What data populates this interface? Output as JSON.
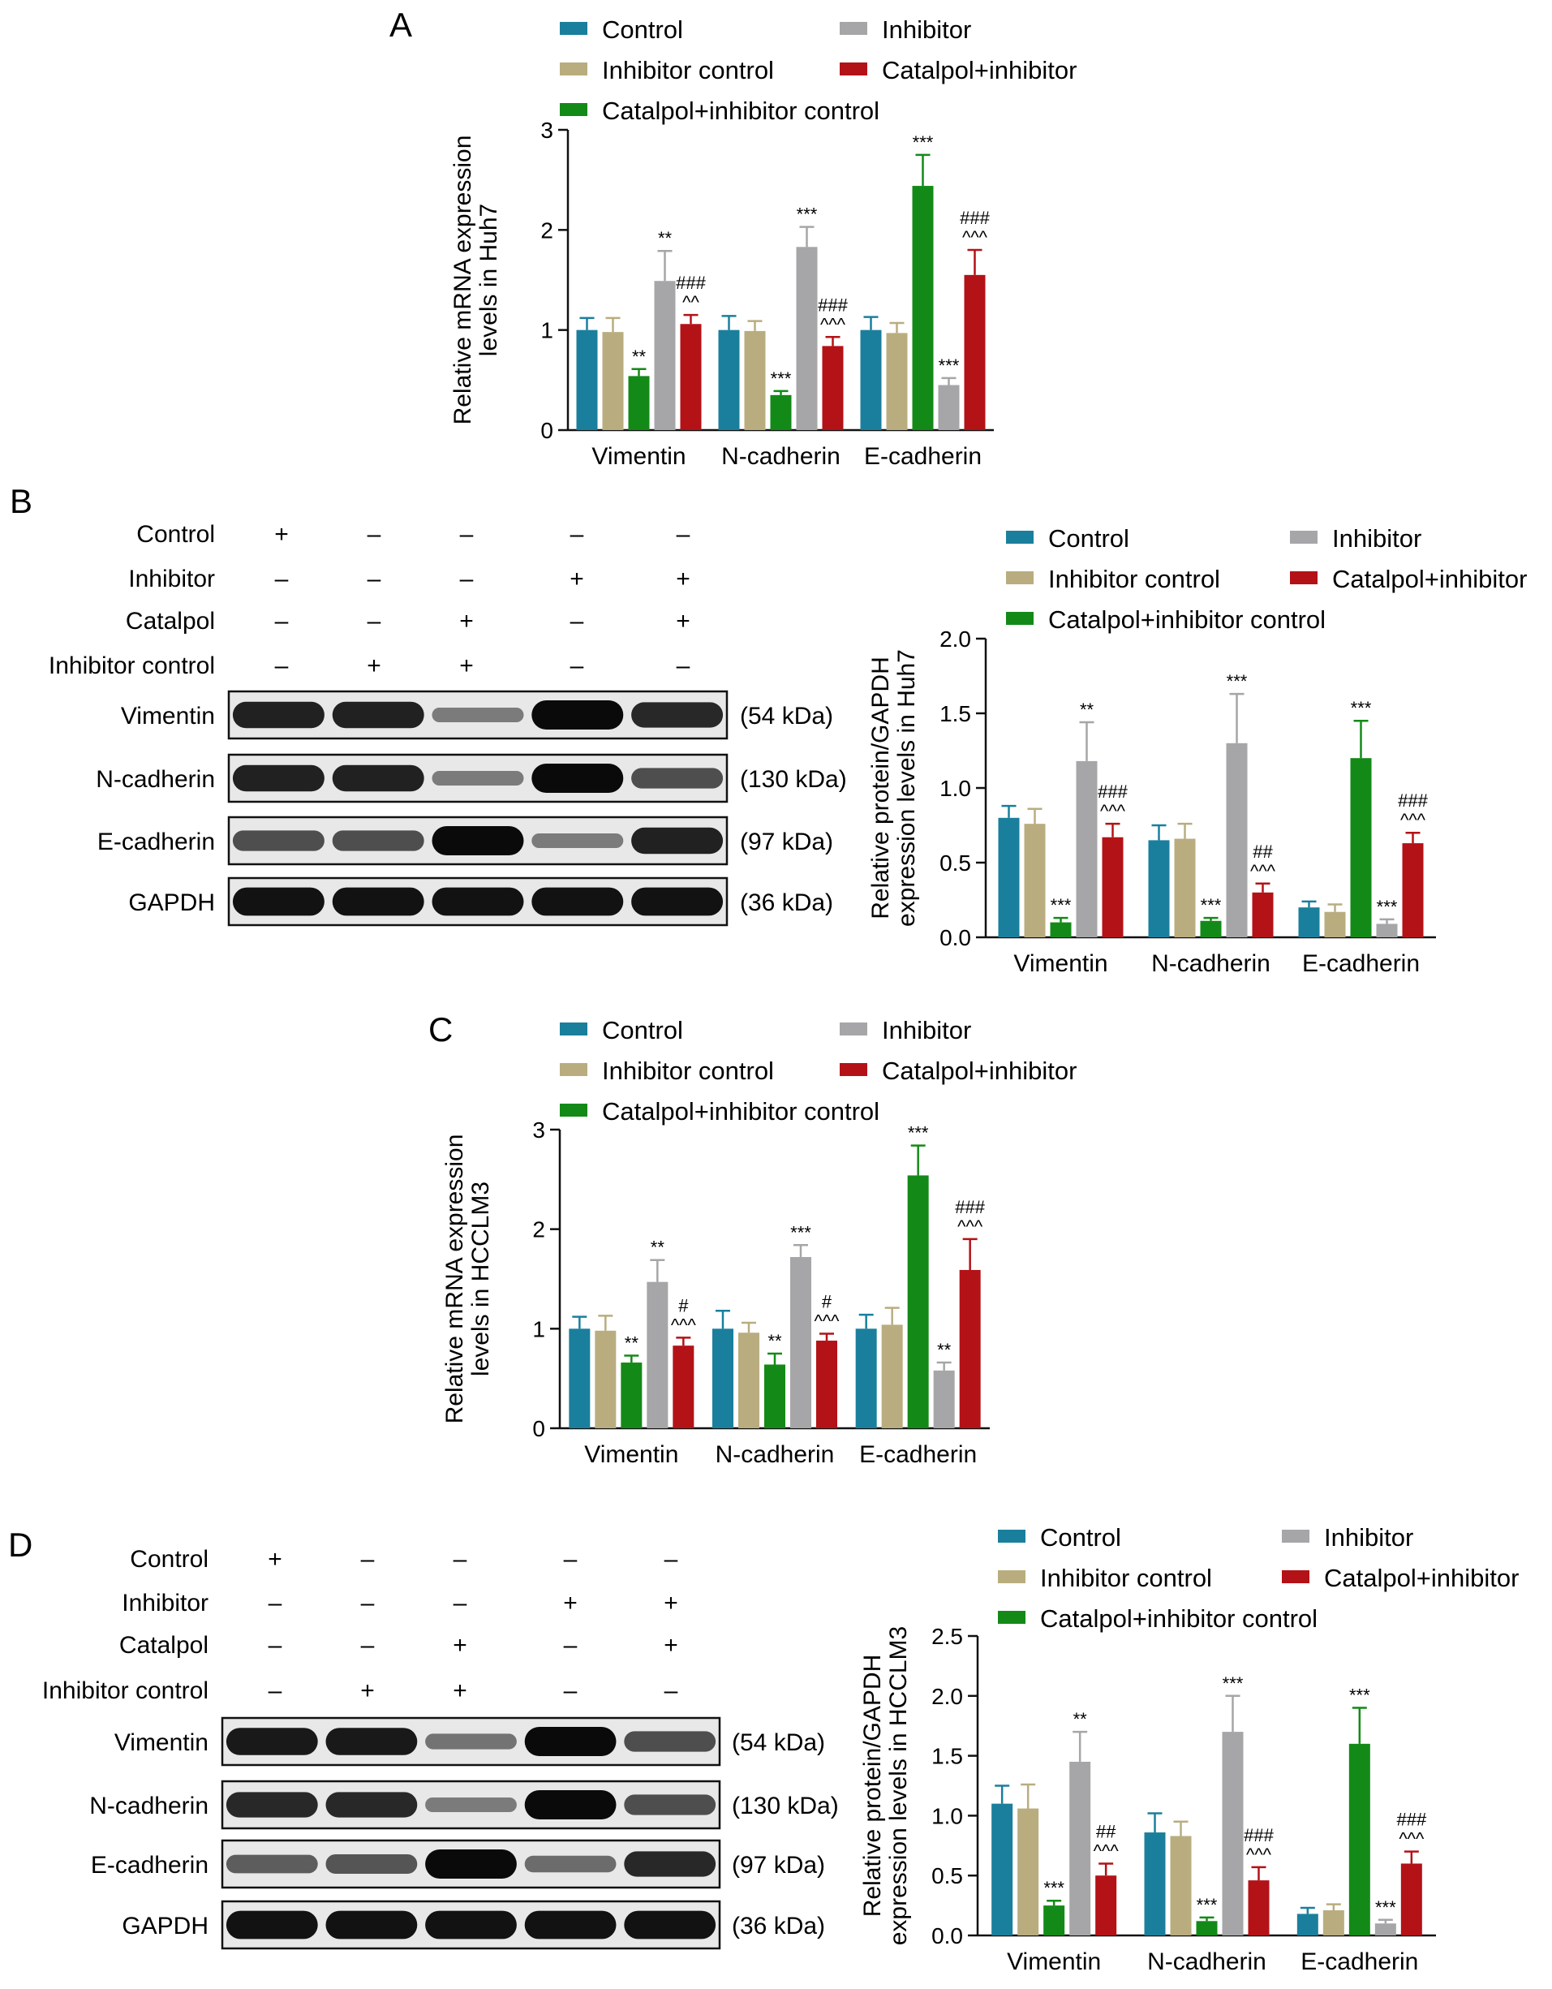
{
  "colors": {
    "Control": "#1a7f9c",
    "Inhibitor control": "#b9ad7f",
    "Catalpol+inhibitor control": "#138a17",
    "Inhibitor": "#a6a6a8",
    "Catalpol+inhibitor": "#b31217"
  },
  "chart_data": [
    {
      "panel": "A",
      "type": "bar",
      "categories": [
        "Vimentin",
        "N-cadherin",
        "E-cadherin"
      ],
      "ylabel": [
        "Relative mRNA expression",
        "levels in Huh7"
      ],
      "ylim": [
        0,
        3
      ],
      "yticks": [
        "0",
        "1",
        "2",
        "3"
      ],
      "legend": [
        "Control",
        "Inhibitor",
        "Inhibitor control",
        "Catalpol+inhibitor",
        "Catalpol+inhibitor control"
      ],
      "series": [
        {
          "name": "Control",
          "values": [
            1.0,
            1.0,
            1.0
          ],
          "err": [
            0.12,
            0.14,
            0.13
          ],
          "sig": [
            "",
            "",
            ""
          ]
        },
        {
          "name": "Inhibitor control",
          "values": [
            0.98,
            0.99,
            0.97
          ],
          "err": [
            0.14,
            0.1,
            0.1
          ],
          "sig": [
            "",
            "",
            ""
          ]
        },
        {
          "name": "Catalpol+inhibitor control",
          "values": [
            0.54,
            0.35,
            2.44
          ],
          "err": [
            0.07,
            0.04,
            0.31
          ],
          "sig": [
            "**",
            "***",
            "***"
          ]
        },
        {
          "name": "Inhibitor",
          "values": [
            1.49,
            1.83,
            0.45
          ],
          "err": [
            0.3,
            0.2,
            0.07
          ],
          "sig": [
            "**",
            "***",
            "***"
          ]
        },
        {
          "name": "Catalpol+inhibitor",
          "values": [
            1.06,
            0.84,
            1.55
          ],
          "err": [
            0.09,
            0.09,
            0.25
          ],
          "sig": [
            "^^|###",
            "^^^|###",
            "^^^|###"
          ]
        }
      ]
    },
    {
      "panel": "B",
      "type": "bar",
      "categories": [
        "Vimentin",
        "N-cadherin",
        "E-cadherin"
      ],
      "ylabel": [
        "Relative protein/GAPDH",
        "expression levels in Huh7"
      ],
      "ylim": [
        0,
        2.0
      ],
      "yticks": [
        "0.0",
        "0.5",
        "1.0",
        "1.5",
        "2.0"
      ],
      "legend": [
        "Control",
        "Inhibitor",
        "Inhibitor control",
        "Catalpol+inhibitor",
        "Catalpol+inhibitor control"
      ],
      "series": [
        {
          "name": "Control",
          "values": [
            0.8,
            0.65,
            0.2
          ],
          "err": [
            0.08,
            0.1,
            0.04
          ],
          "sig": [
            "",
            "",
            ""
          ]
        },
        {
          "name": "Inhibitor control",
          "values": [
            0.76,
            0.66,
            0.17
          ],
          "err": [
            0.1,
            0.1,
            0.05
          ],
          "sig": [
            "",
            "",
            ""
          ]
        },
        {
          "name": "Catalpol+inhibitor control",
          "values": [
            0.1,
            0.11,
            1.2
          ],
          "err": [
            0.03,
            0.02,
            0.25
          ],
          "sig": [
            "***",
            "***",
            "***"
          ]
        },
        {
          "name": "Inhibitor",
          "values": [
            1.18,
            1.3,
            0.09
          ],
          "err": [
            0.26,
            0.33,
            0.03
          ],
          "sig": [
            "**",
            "***",
            "***"
          ]
        },
        {
          "name": "Catalpol+inhibitor",
          "values": [
            0.67,
            0.3,
            0.63
          ],
          "err": [
            0.09,
            0.06,
            0.07
          ],
          "sig": [
            "^^^|###",
            "^^^|##",
            "^^^|###"
          ]
        }
      ]
    },
    {
      "panel": "C",
      "type": "bar",
      "categories": [
        "Vimentin",
        "N-cadherin",
        "E-cadherin"
      ],
      "ylabel": [
        "Relative mRNA expression",
        "levels in HCCLM3"
      ],
      "ylim": [
        0,
        3
      ],
      "yticks": [
        "0",
        "1",
        "2",
        "3"
      ],
      "legend": [
        "Control",
        "Inhibitor",
        "Inhibitor control",
        "Catalpol+inhibitor",
        "Catalpol+inhibitor control"
      ],
      "series": [
        {
          "name": "Control",
          "values": [
            1.0,
            1.0,
            1.0
          ],
          "err": [
            0.12,
            0.18,
            0.14
          ],
          "sig": [
            "",
            "",
            ""
          ]
        },
        {
          "name": "Inhibitor control",
          "values": [
            0.98,
            0.96,
            1.04
          ],
          "err": [
            0.15,
            0.1,
            0.17
          ],
          "sig": [
            "",
            "",
            ""
          ]
        },
        {
          "name": "Catalpol+inhibitor control",
          "values": [
            0.66,
            0.64,
            2.54
          ],
          "err": [
            0.07,
            0.11,
            0.3
          ],
          "sig": [
            "**",
            "**",
            "***"
          ]
        },
        {
          "name": "Inhibitor",
          "values": [
            1.47,
            1.72,
            0.58
          ],
          "err": [
            0.22,
            0.12,
            0.08
          ],
          "sig": [
            "**",
            "***",
            "**"
          ]
        },
        {
          "name": "Catalpol+inhibitor",
          "values": [
            0.83,
            0.88,
            1.59
          ],
          "err": [
            0.08,
            0.07,
            0.31
          ],
          "sig": [
            "^^^|#",
            "^^^|#",
            "^^^|###"
          ]
        }
      ]
    },
    {
      "panel": "D",
      "type": "bar",
      "categories": [
        "Vimentin",
        "N-cadherin",
        "E-cadherin"
      ],
      "ylabel": [
        "Relative protein/GAPDH",
        "expression levels in HCCLM3"
      ],
      "ylim": [
        0,
        2.5
      ],
      "yticks": [
        "0.0",
        "0.5",
        "1.0",
        "1.5",
        "2.0",
        "2.5"
      ],
      "legend": [
        "Control",
        "Inhibitor",
        "Inhibitor control",
        "Catalpol+inhibitor",
        "Catalpol+inhibitor control"
      ],
      "series": [
        {
          "name": "Control",
          "values": [
            1.1,
            0.86,
            0.18
          ],
          "err": [
            0.15,
            0.16,
            0.05
          ],
          "sig": [
            "",
            "",
            ""
          ]
        },
        {
          "name": "Inhibitor control",
          "values": [
            1.06,
            0.83,
            0.21
          ],
          "err": [
            0.2,
            0.12,
            0.05
          ],
          "sig": [
            "",
            "",
            ""
          ]
        },
        {
          "name": "Catalpol+inhibitor control",
          "values": [
            0.25,
            0.12,
            1.6
          ],
          "err": [
            0.04,
            0.03,
            0.3
          ],
          "sig": [
            "***",
            "***",
            "***"
          ]
        },
        {
          "name": "Inhibitor",
          "values": [
            1.45,
            1.7,
            0.1
          ],
          "err": [
            0.25,
            0.3,
            0.03
          ],
          "sig": [
            "**",
            "***",
            "***"
          ]
        },
        {
          "name": "Catalpol+inhibitor",
          "values": [
            0.5,
            0.46,
            0.6
          ],
          "err": [
            0.1,
            0.11,
            0.1
          ],
          "sig": [
            "^^^|##",
            "^^^|###",
            "^^^|###"
          ]
        }
      ]
    }
  ],
  "blots": [
    {
      "panel": "B",
      "conditions": [
        {
          "label": "Control",
          "signs": [
            "+",
            "–",
            "–",
            "–",
            "–"
          ]
        },
        {
          "label": "Inhibitor",
          "signs": [
            "–",
            "–",
            "–",
            "+",
            "+"
          ]
        },
        {
          "label": "Catalpol",
          "signs": [
            "–",
            "–",
            "+",
            "–",
            "+"
          ]
        },
        {
          "label": "Inhibitor control",
          "signs": [
            "–",
            "+",
            "+",
            "–",
            "–"
          ]
        }
      ],
      "rows": [
        {
          "label": "Vimentin",
          "size": "(54 kDa)",
          "intensity": [
            0.85,
            0.85,
            0.25,
            1.0,
            0.8
          ]
        },
        {
          "label": "N-cadherin",
          "size": "(130 kDa)",
          "intensity": [
            0.85,
            0.85,
            0.25,
            1.0,
            0.55
          ]
        },
        {
          "label": "E-cadherin",
          "size": "(97 kDa)",
          "intensity": [
            0.55,
            0.55,
            1.0,
            0.25,
            0.85
          ]
        },
        {
          "label": "GAPDH",
          "size": "(36 kDa)",
          "intensity": [
            0.95,
            0.95,
            0.95,
            0.95,
            0.95
          ]
        }
      ]
    },
    {
      "panel": "D",
      "conditions": [
        {
          "label": "Control",
          "signs": [
            "+",
            "–",
            "–",
            "–",
            "–"
          ]
        },
        {
          "label": "Inhibitor",
          "signs": [
            "–",
            "–",
            "–",
            "+",
            "+"
          ]
        },
        {
          "label": "Catalpol",
          "signs": [
            "–",
            "–",
            "+",
            "–",
            "+"
          ]
        },
        {
          "label": "Inhibitor control",
          "signs": [
            "–",
            "+",
            "+",
            "–",
            "–"
          ]
        }
      ],
      "rows": [
        {
          "label": "Vimentin",
          "size": "(54 kDa)",
          "intensity": [
            0.9,
            0.9,
            0.3,
            1.0,
            0.55
          ]
        },
        {
          "label": "N-cadherin",
          "size": "(130 kDa)",
          "intensity": [
            0.8,
            0.8,
            0.25,
            1.0,
            0.55
          ]
        },
        {
          "label": "E-cadherin",
          "size": "(97 kDa)",
          "intensity": [
            0.45,
            0.5,
            1.0,
            0.35,
            0.8
          ]
        },
        {
          "label": "GAPDH",
          "size": "(36 kDa)",
          "intensity": [
            0.95,
            0.95,
            0.95,
            0.95,
            0.95
          ]
        }
      ]
    }
  ]
}
